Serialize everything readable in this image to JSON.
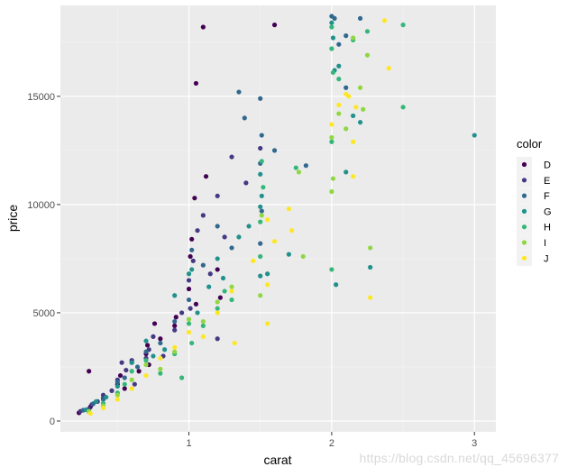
{
  "chart_data": {
    "type": "scatter",
    "xlabel": "carat",
    "ylabel": "price",
    "xlim": [
      0.1,
      3.15
    ],
    "ylim": [
      -500,
      19200
    ],
    "x_ticks": [
      1,
      2,
      3
    ],
    "y_ticks": [
      0,
      5000,
      10000,
      15000
    ],
    "y_tick_labels": [
      "0",
      "5000",
      "10000",
      "15000"
    ],
    "grid": true,
    "legend": {
      "title": "color",
      "placement": "right"
    },
    "series": [
      {
        "name": "D",
        "color": "#440154",
        "points": [
          [
            0.23,
            380
          ],
          [
            0.3,
            2300
          ],
          [
            0.31,
            650
          ],
          [
            0.4,
            1050
          ],
          [
            0.5,
            1700
          ],
          [
            0.52,
            2100
          ],
          [
            0.55,
            1500
          ],
          [
            0.6,
            2700
          ],
          [
            0.7,
            3100
          ],
          [
            0.71,
            3500
          ],
          [
            0.72,
            2600
          ],
          [
            0.8,
            3800
          ],
          [
            0.9,
            4400
          ],
          [
            0.91,
            4800
          ],
          [
            1.0,
            6100
          ],
          [
            1.01,
            7600
          ],
          [
            1.02,
            8400
          ],
          [
            1.04,
            10300
          ],
          [
            1.05,
            5400
          ],
          [
            1.1,
            18200
          ],
          [
            1.12,
            11300
          ],
          [
            1.2,
            7000
          ],
          [
            1.22,
            5700
          ],
          [
            1.05,
            15600
          ],
          [
            1.6,
            18300
          ],
          [
            0.65,
            2300
          ],
          [
            0.76,
            4500
          ]
        ]
      },
      {
        "name": "E",
        "color": "#443983",
        "points": [
          [
            0.24,
            450
          ],
          [
            0.3,
            560
          ],
          [
            0.32,
            760
          ],
          [
            0.36,
            900
          ],
          [
            0.4,
            1200
          ],
          [
            0.46,
            1400
          ],
          [
            0.5,
            1900
          ],
          [
            0.56,
            2350
          ],
          [
            0.6,
            2800
          ],
          [
            0.7,
            2900
          ],
          [
            0.72,
            3300
          ],
          [
            0.75,
            3900
          ],
          [
            0.82,
            3000
          ],
          [
            0.9,
            4200
          ],
          [
            0.95,
            5000
          ],
          [
            1.0,
            6500
          ],
          [
            1.01,
            5200
          ],
          [
            1.03,
            7400
          ],
          [
            1.06,
            8800
          ],
          [
            1.1,
            9500
          ],
          [
            1.15,
            6800
          ],
          [
            1.2,
            10400
          ],
          [
            1.25,
            8500
          ],
          [
            1.3,
            12200
          ],
          [
            1.2,
            3800
          ],
          [
            1.4,
            11000
          ],
          [
            1.5,
            12600
          ],
          [
            0.53,
            2700
          ],
          [
            0.62,
            1700
          ]
        ]
      },
      {
        "name": "F",
        "color": "#31688e",
        "points": [
          [
            0.26,
            500
          ],
          [
            0.33,
            800
          ],
          [
            0.4,
            1000
          ],
          [
            0.5,
            1800
          ],
          [
            0.55,
            2000
          ],
          [
            0.64,
            2500
          ],
          [
            0.7,
            3200
          ],
          [
            0.8,
            3600
          ],
          [
            0.9,
            4600
          ],
          [
            1.0,
            5600
          ],
          [
            1.02,
            7900
          ],
          [
            1.1,
            7200
          ],
          [
            1.2,
            9000
          ],
          [
            1.3,
            8000
          ],
          [
            1.35,
            15200
          ],
          [
            1.39,
            14000
          ],
          [
            1.5,
            14900
          ],
          [
            1.5,
            11900
          ],
          [
            1.51,
            13200
          ],
          [
            1.51,
            9700
          ],
          [
            1.6,
            12500
          ],
          [
            1.82,
            11800
          ],
          [
            2.0,
            18700
          ],
          [
            2.02,
            18600
          ],
          [
            2.1,
            17800
          ],
          [
            2.2,
            18600
          ],
          [
            2.1,
            15400
          ],
          [
            2.05,
            17400
          ],
          [
            1.5,
            8200
          ]
        ]
      },
      {
        "name": "G",
        "color": "#21918c",
        "points": [
          [
            0.28,
            520
          ],
          [
            0.35,
            900
          ],
          [
            0.42,
            1100
          ],
          [
            0.5,
            1600
          ],
          [
            0.6,
            2700
          ],
          [
            0.7,
            3700
          ],
          [
            0.75,
            3000
          ],
          [
            0.83,
            3300
          ],
          [
            0.9,
            5800
          ],
          [
            1.0,
            6800
          ],
          [
            1.02,
            7000
          ],
          [
            1.06,
            5000
          ],
          [
            1.14,
            6200
          ],
          [
            1.2,
            7500
          ],
          [
            1.24,
            6600
          ],
          [
            1.35,
            8500
          ],
          [
            1.42,
            9000
          ],
          [
            1.5,
            9900
          ],
          [
            1.5,
            11400
          ],
          [
            1.51,
            10400
          ],
          [
            1.5,
            6700
          ],
          [
            1.55,
            6800
          ],
          [
            1.7,
            7700
          ],
          [
            2.0,
            18400
          ],
          [
            2.01,
            17700
          ],
          [
            2.02,
            16200
          ],
          [
            2.03,
            6300
          ],
          [
            2.1,
            11500
          ],
          [
            2.15,
            14100
          ],
          [
            2.2,
            13800
          ],
          [
            2.27,
            7100
          ],
          [
            3.0,
            13200
          ],
          [
            2.05,
            16400
          ]
        ]
      },
      {
        "name": "H",
        "color": "#35b779",
        "points": [
          [
            0.3,
            430
          ],
          [
            0.4,
            820
          ],
          [
            0.5,
            1300
          ],
          [
            0.55,
            1700
          ],
          [
            0.6,
            2300
          ],
          [
            0.7,
            2800
          ],
          [
            0.8,
            2200
          ],
          [
            0.9,
            3100
          ],
          [
            1.0,
            4500
          ],
          [
            1.02,
            3600
          ],
          [
            1.1,
            4400
          ],
          [
            1.2,
            5200
          ],
          [
            1.25,
            6000
          ],
          [
            1.3,
            5600
          ],
          [
            1.5,
            9200
          ],
          [
            1.5,
            7600
          ],
          [
            1.52,
            10800
          ],
          [
            1.51,
            12000
          ],
          [
            2.0,
            18200
          ],
          [
            2.0,
            17200
          ],
          [
            2.01,
            16100
          ],
          [
            2.0,
            7000
          ],
          [
            2.0,
            12900
          ],
          [
            2.05,
            15800
          ],
          [
            2.15,
            17600
          ],
          [
            2.25,
            18000
          ],
          [
            2.5,
            18300
          ],
          [
            2.5,
            14500
          ],
          [
            1.75,
            11700
          ],
          [
            0.95,
            2000
          ]
        ]
      },
      {
        "name": "I",
        "color": "#90d743",
        "points": [
          [
            0.3,
            450
          ],
          [
            0.4,
            700
          ],
          [
            0.5,
            1200
          ],
          [
            0.6,
            1900
          ],
          [
            0.7,
            2600
          ],
          [
            0.8,
            2400
          ],
          [
            0.9,
            3200
          ],
          [
            1.0,
            4700
          ],
          [
            1.1,
            4600
          ],
          [
            1.2,
            5500
          ],
          [
            1.3,
            6200
          ],
          [
            1.5,
            5800
          ],
          [
            1.51,
            9500
          ],
          [
            1.77,
            11500
          ],
          [
            1.8,
            7600
          ],
          [
            2.0,
            13100
          ],
          [
            2.0,
            10600
          ],
          [
            2.01,
            11200
          ],
          [
            2.05,
            14200
          ],
          [
            2.2,
            15400
          ],
          [
            2.1,
            13500
          ],
          [
            2.15,
            17700
          ],
          [
            2.22,
            14400
          ],
          [
            2.25,
            16900
          ],
          [
            2.27,
            8000
          ]
        ]
      },
      {
        "name": "J",
        "color": "#fde725",
        "points": [
          [
            0.31,
            350
          ],
          [
            0.4,
            600
          ],
          [
            0.5,
            1000
          ],
          [
            0.6,
            1500
          ],
          [
            0.7,
            2100
          ],
          [
            0.8,
            2900
          ],
          [
            0.9,
            3400
          ],
          [
            1.0,
            4100
          ],
          [
            1.1,
            3900
          ],
          [
            1.2,
            5000
          ],
          [
            1.3,
            6000
          ],
          [
            1.32,
            3600
          ],
          [
            1.45,
            7400
          ],
          [
            1.55,
            4500
          ],
          [
            1.55,
            6300
          ],
          [
            1.55,
            9300
          ],
          [
            1.6,
            8300
          ],
          [
            1.7,
            9800
          ],
          [
            1.72,
            8800
          ],
          [
            2.0,
            13700
          ],
          [
            2.05,
            14600
          ],
          [
            2.1,
            15100
          ],
          [
            2.12,
            15000
          ],
          [
            2.15,
            12900
          ],
          [
            2.27,
            5700
          ],
          [
            2.37,
            18500
          ],
          [
            2.4,
            16300
          ],
          [
            2.15,
            11300
          ],
          [
            2.17,
            14500
          ]
        ]
      }
    ]
  },
  "watermark": "https://blog.csdn.net/qq_45696377"
}
